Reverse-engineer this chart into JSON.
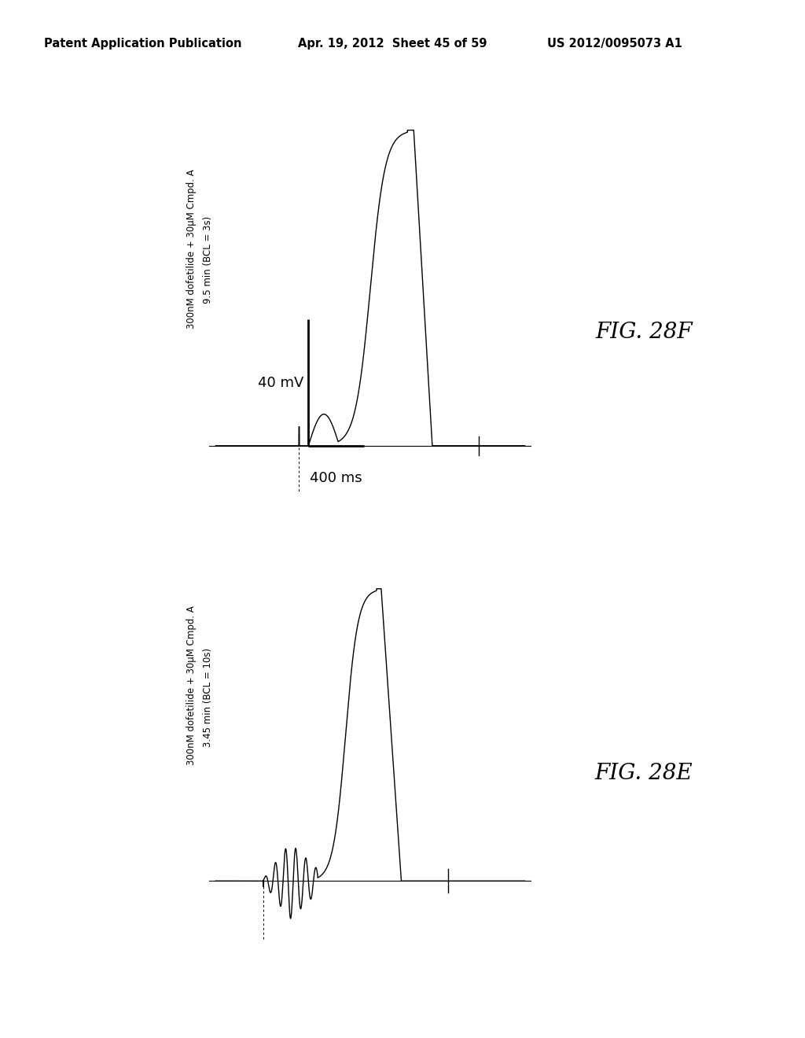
{
  "bg_color": "#ffffff",
  "header_left": "Patent Application Publication",
  "header_mid": "Apr. 19, 2012  Sheet 45 of 59",
  "header_right": "US 2012/0095073 A1",
  "header_fontsize": 10.5,
  "top_panel": {
    "label_line1": "300nM dofetilide + 30μM Cmpd. A",
    "label_line2": "9.5 min (BCL = 3s)",
    "scale_v": "40 mV",
    "scale_t": "400 ms",
    "fig_label": "FIG. 28F"
  },
  "bottom_panel": {
    "label_line1": "300nM dofetilide + 30μM Cmpd. A",
    "label_line2": "3.45 min (BCL = 10s)",
    "fig_label": "FIG. 28E"
  }
}
